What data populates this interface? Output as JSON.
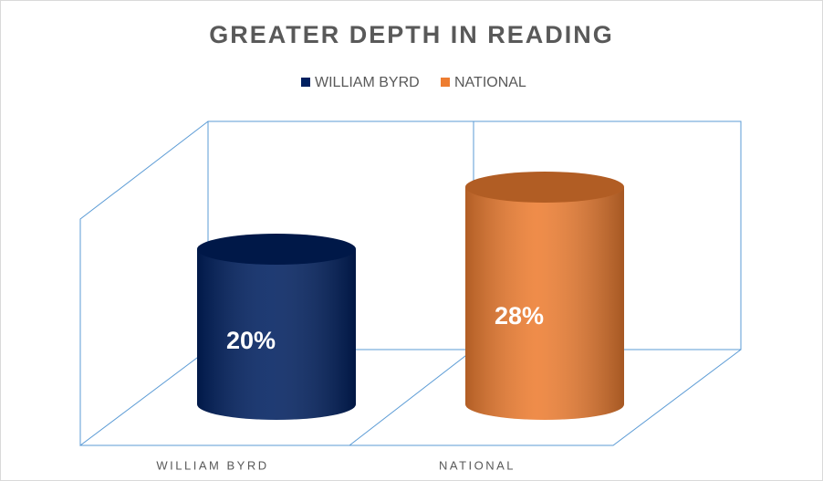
{
  "chart_data": {
    "type": "cylinder",
    "title": "GREATER  DEPTH IN READING",
    "categories": [
      "WILLIAM BYRD",
      "NATIONAL"
    ],
    "values": [
      20,
      28
    ],
    "value_labels": [
      "20%",
      "28%"
    ],
    "colors": [
      "#002060",
      "#ed7d31"
    ],
    "ylim": [
      0,
      30
    ],
    "legend": "top"
  }
}
